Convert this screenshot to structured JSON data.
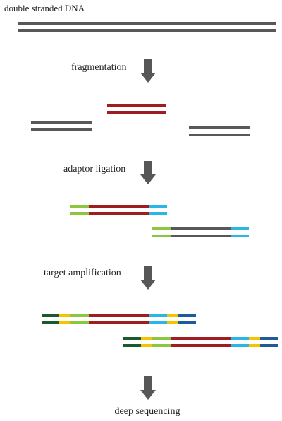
{
  "diagram": {
    "title": "double stranded DNA",
    "steps": {
      "fragmentation": "fragmentation",
      "adaptor_ligation": "adaptor ligation",
      "target_amplification": "target amplification",
      "deep_sequencing": "deep sequencing"
    },
    "colors": {
      "dna_gray": "#58585a",
      "target_red": "#a01c1f",
      "adaptor_green": "#8cc63e",
      "adaptor_cyan": "#2ab7e8",
      "primer_darkgreen": "#1a5a2e",
      "index_yellow": "#f5c400",
      "primer_blue": "#1f5a9a",
      "arrow_gray": "#575757"
    },
    "icons": {
      "step_arrow": "down-arrow-icon"
    }
  }
}
